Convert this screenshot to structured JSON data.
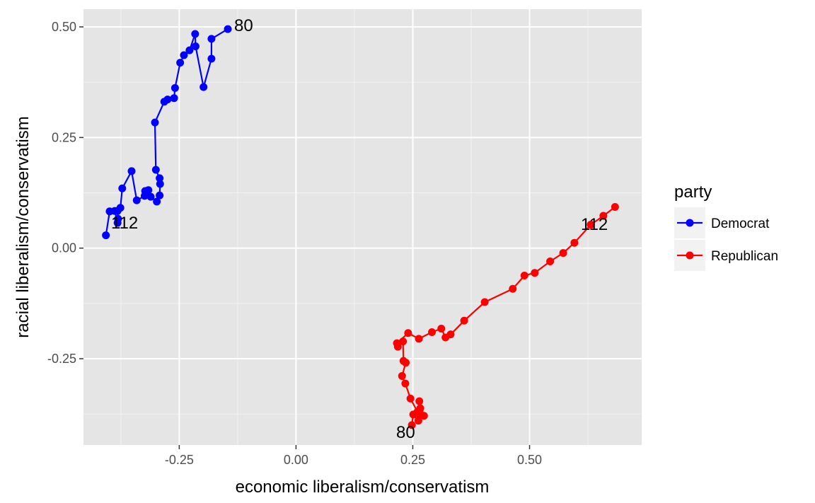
{
  "chart_data": {
    "type": "line",
    "xlabel": "economic liberalism/conservatism",
    "ylabel": "racial liberalism/conservatism",
    "xlim": [
      -0.455,
      0.74
    ],
    "ylim": [
      -0.445,
      0.54
    ],
    "x_ticks": [
      -0.25,
      0.0,
      0.25,
      0.5
    ],
    "x_tick_labels": [
      "-0.25",
      "0.00",
      "0.25",
      "0.50"
    ],
    "y_ticks": [
      -0.25,
      0.0,
      0.25,
      0.5
    ],
    "y_tick_labels": [
      "-0.25",
      "0.00",
      "0.25",
      "0.50"
    ],
    "grid": true,
    "legend": {
      "title": "party",
      "position": "right"
    },
    "series": [
      {
        "name": "Democrat",
        "color": "#0000ff",
        "points": [
          [
            -0.146,
            0.495
          ],
          [
            -0.181,
            0.473
          ],
          [
            -0.181,
            0.428
          ],
          [
            -0.198,
            0.364
          ],
          [
            -0.215,
            0.456
          ],
          [
            -0.216,
            0.484
          ],
          [
            -0.228,
            0.447
          ],
          [
            -0.24,
            0.436
          ],
          [
            -0.248,
            0.419
          ],
          [
            -0.259,
            0.362
          ],
          [
            -0.261,
            0.339
          ],
          [
            -0.275,
            0.336
          ],
          [
            -0.282,
            0.331
          ],
          [
            -0.302,
            0.284
          ],
          [
            -0.3,
            0.177
          ],
          [
            -0.292,
            0.158
          ],
          [
            -0.291,
            0.145
          ],
          [
            -0.292,
            0.119
          ],
          [
            -0.298,
            0.105
          ],
          [
            -0.311,
            0.116
          ],
          [
            -0.316,
            0.131
          ],
          [
            -0.323,
            0.129
          ],
          [
            -0.324,
            0.118
          ],
          [
            -0.341,
            0.108
          ],
          [
            -0.352,
            0.174
          ],
          [
            -0.372,
            0.135
          ],
          [
            -0.376,
            0.091
          ],
          [
            -0.382,
            0.084
          ],
          [
            -0.381,
            0.066
          ],
          [
            -0.382,
            0.057
          ],
          [
            -0.388,
            0.084
          ],
          [
            -0.399,
            0.083
          ],
          [
            -0.407,
            0.029
          ]
        ],
        "labels": [
          {
            "text": "80",
            "at": [
              -0.146,
              0.495
            ]
          },
          {
            "text": "112",
            "at": [
              -0.378,
              0.058
            ]
          }
        ]
      },
      {
        "name": "Republican",
        "color": "#ff0000",
        "points": [
          [
            0.248,
            -0.4
          ],
          [
            0.251,
            -0.376
          ],
          [
            0.262,
            -0.39
          ],
          [
            0.264,
            -0.375
          ],
          [
            0.266,
            -0.362
          ],
          [
            0.264,
            -0.346
          ],
          [
            0.274,
            -0.379
          ],
          [
            0.26,
            -0.37
          ],
          [
            0.245,
            -0.34
          ],
          [
            0.234,
            -0.306
          ],
          [
            0.227,
            -0.289
          ],
          [
            0.235,
            -0.259
          ],
          [
            0.23,
            -0.255
          ],
          [
            0.229,
            -0.211
          ],
          [
            0.218,
            -0.223
          ],
          [
            0.216,
            -0.215
          ],
          [
            0.24,
            -0.192
          ],
          [
            0.263,
            -0.205
          ],
          [
            0.291,
            -0.19
          ],
          [
            0.311,
            -0.182
          ],
          [
            0.32,
            -0.202
          ],
          [
            0.331,
            -0.195
          ],
          [
            0.36,
            -0.164
          ],
          [
            0.404,
            -0.122
          ],
          [
            0.464,
            -0.092
          ],
          [
            0.489,
            -0.062
          ],
          [
            0.511,
            -0.056
          ],
          [
            0.544,
            -0.03
          ],
          [
            0.572,
            -0.011
          ],
          [
            0.596,
            0.012
          ],
          [
            0.631,
            0.053
          ],
          [
            0.658,
            0.073
          ],
          [
            0.683,
            0.093
          ]
        ],
        "labels": [
          {
            "text": "80",
            "at": [
              0.248,
              -0.4
            ]
          },
          {
            "text": "112",
            "at": [
              0.683,
              0.093
            ]
          }
        ]
      }
    ]
  }
}
